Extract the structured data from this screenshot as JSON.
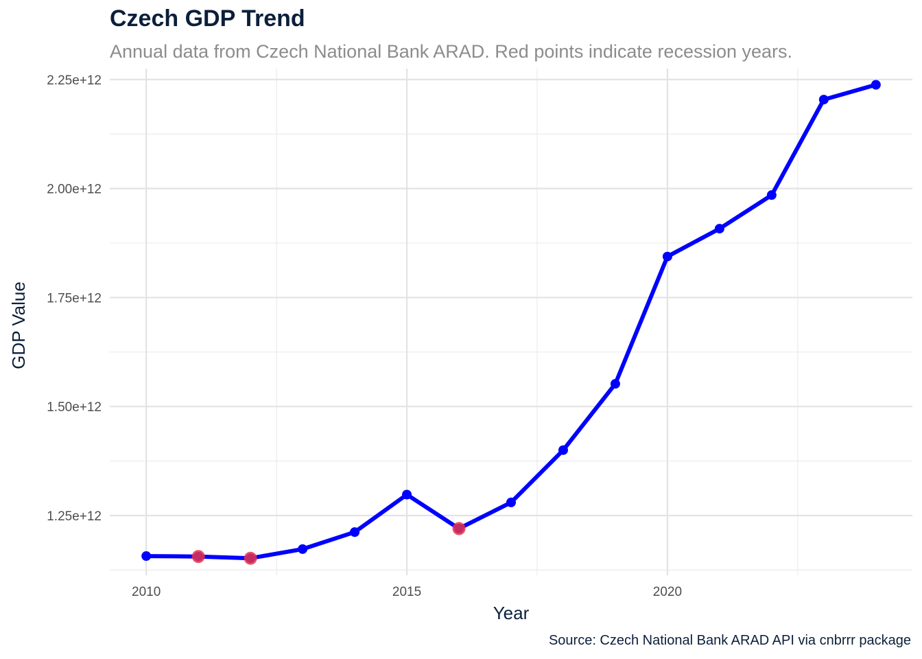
{
  "chart_data": {
    "type": "line",
    "title": "Czech GDP Trend",
    "subtitle": "Annual data from Czech National Bank ARAD. Red points indicate recession years.",
    "caption": "Source: Czech National Bank ARAD API via cnbrrr package",
    "xlabel": "Year",
    "ylabel": "GDP Value",
    "xlim": [
      2009.3,
      2024.7
    ],
    "ylim": [
      1113000000000.0,
      2275000000000.0
    ],
    "x_ticks": [
      2010,
      2015,
      2020
    ],
    "x_tick_labels": [
      "2010",
      "2015",
      "2020"
    ],
    "y_ticks": [
      1250000000000.0,
      1500000000000.0,
      1750000000000.0,
      2000000000000.0,
      2250000000000.0
    ],
    "y_tick_labels": [
      "1.25e+12",
      "1.50e+12",
      "1.75e+12",
      "2.00e+12",
      "2.25e+12"
    ],
    "grid": true,
    "series": [
      {
        "color": "#0000ff",
        "x": [
          2010,
          2011,
          2012,
          2013,
          2014,
          2015,
          2016,
          2017,
          2018,
          2019,
          2020,
          2021,
          2022,
          2023,
          2024
        ],
        "y": [
          1157000000000.0,
          1156000000000.0,
          1152000000000.0,
          1173000000000.0,
          1212000000000.0,
          1298000000000.0,
          1220000000000.0,
          1280000000000.0,
          1400000000000.0,
          1552000000000.0,
          1844000000000.0,
          1908000000000.0,
          1985000000000.0,
          2204000000000.0,
          2238000000000.0
        ]
      }
    ],
    "recession": {
      "color": "#e8334a",
      "x": [
        2011,
        2012,
        2016
      ],
      "y": [
        1156000000000.0,
        1152000000000.0,
        1220000000000.0
      ]
    }
  }
}
